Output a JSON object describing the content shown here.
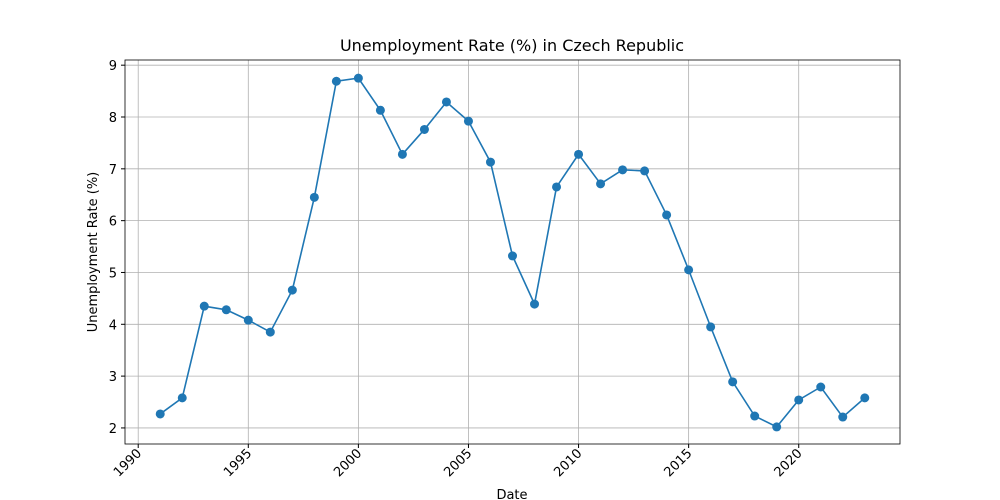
{
  "chart_data": {
    "type": "line",
    "title": "Unemployment Rate (%) in Czech Republic",
    "x_label": "Date",
    "y_label": "Unemployment Rate (%)",
    "x": [
      1991,
      1992,
      1993,
      1994,
      1995,
      1996,
      1997,
      1998,
      1999,
      2000,
      2001,
      2002,
      2003,
      2004,
      2005,
      2006,
      2007,
      2008,
      2009,
      2010,
      2011,
      2012,
      2013,
      2014,
      2015,
      2016,
      2017,
      2018,
      2019,
      2020,
      2021,
      2022,
      2023
    ],
    "series": [
      {
        "name": "Unemployment Rate (%)",
        "color": "#1f77b4",
        "values": [
          2.27,
          2.58,
          4.35,
          4.28,
          4.08,
          3.85,
          4.66,
          6.45,
          8.69,
          8.75,
          8.13,
          7.28,
          7.76,
          8.29,
          7.92,
          7.13,
          5.32,
          4.39,
          6.65,
          7.28,
          6.71,
          6.98,
          6.96,
          6.11,
          5.05,
          3.95,
          2.89,
          2.23,
          2.02,
          2.54,
          2.79,
          2.21,
          2.58
        ]
      }
    ],
    "xlim": [
      1989.4,
      2024.6
    ],
    "ylim": [
      1.69,
      9.1
    ],
    "xticks": [
      1990,
      1995,
      2000,
      2005,
      2010,
      2015,
      2020
    ],
    "yticks": [
      2,
      3,
      4,
      5,
      6,
      7,
      8,
      9
    ],
    "grid": true
  }
}
